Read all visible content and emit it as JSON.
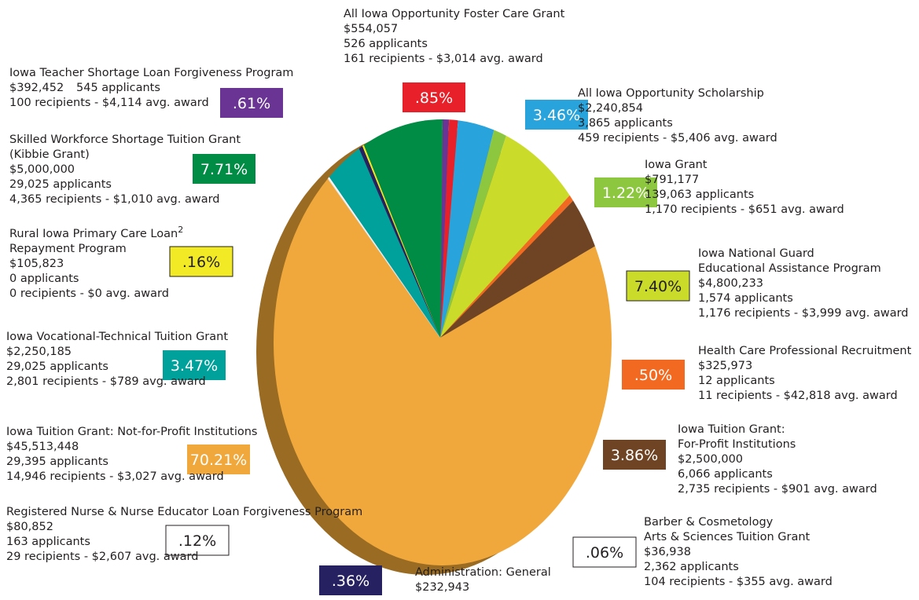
{
  "chart_data": {
    "type": "pie",
    "categories": [
      [
        "Iowa Teacher Shortage Loan Forgiveness Program"
      ],
      [
        "All Iowa Opportunity Foster Care Grant"
      ],
      [
        "All Iowa Opportunity Scholarship"
      ],
      [
        "Iowa Grant"
      ],
      [
        "Iowa National Guard",
        "Educational Assistance Program"
      ],
      [
        "Health Care Professional Recruitment"
      ],
      [
        "Iowa Tuition Grant:",
        "For-Profit Institutions"
      ],
      [
        "Iowa Tuition Grant: Not-for-Profit Institutions"
      ],
      [
        "Barber & Cosmetology",
        "Arts & Sciences Tuition Grant"
      ],
      [
        "Registered Nurse & Nurse Educator Loan Forgiveness Program"
      ],
      [
        "Iowa Vocational-Technical Tuition Grant"
      ],
      [
        "Administration: General"
      ],
      [
        "Rural Iowa Primary Care Loan",
        "Repayment Program"
      ],
      [
        "Skilled Workforce Shortage Tuition Grant",
        "(Kibbie Grant)"
      ]
    ],
    "superscripts": [
      null,
      null,
      null,
      null,
      null,
      null,
      null,
      null,
      null,
      null,
      null,
      null,
      "2",
      null
    ],
    "details": [
      [
        "$392,452",
        "545 applicants",
        "100 recipients - $4,114 avg. award"
      ],
      [
        "$554,057",
        "526 applicants",
        "161 recipients - $3,014 avg. award"
      ],
      [
        "$2,240,854",
        "3,865 applicants",
        "459 recipients - $5,406 avg. award"
      ],
      [
        "$791,177",
        "139,063 applicants",
        "1,170 recipients - $651 avg. award"
      ],
      [
        "$4,800,233",
        "1,574 applicants",
        "1,176 recipients - $3,999 avg. award"
      ],
      [
        "$325,973",
        "12 applicants",
        "11 recipients - $42,818 avg. award"
      ],
      [
        "$2,500,000",
        "6,066 applicants",
        "2,735 recipients - $901 avg. award"
      ],
      [
        "$45,513,448",
        "29,395 applicants",
        "14,946 recipients - $3,027 avg. award"
      ],
      [
        "$36,938",
        "2,362 applicants",
        "104 recipients - $355 avg. award"
      ],
      [
        "$80,852",
        "163 applicants",
        "29 recipients - $2,607 avg. award"
      ],
      [
        "$2,250,185",
        "29,025 applicants",
        "2,801 recipients - $789 avg. award"
      ],
      [
        "$232,943"
      ],
      [
        "$105,823",
        "0 applicants",
        "0 recipients - $0 avg. award"
      ],
      [
        "$5,000,000",
        "29,025 applicants",
        "4,365 recipients - $1,010 avg. award"
      ]
    ],
    "values": [
      0.61,
      0.85,
      3.46,
      1.22,
      7.4,
      0.5,
      3.86,
      70.21,
      0.06,
      0.12,
      3.47,
      0.36,
      0.16,
      7.71
    ],
    "value_labels": [
      ".61%",
      ".85%",
      "3.46%",
      "1.22%",
      "7.40%",
      ".50%",
      "3.86%",
      "70.21%",
      ".06%",
      ".12%",
      "3.47%",
      ".36%",
      ".16%",
      "7.71%"
    ],
    "colors": [
      "#6a3494",
      "#e8202a",
      "#29a3dc",
      "#8dc63f",
      "#cbdb2a",
      "#f26a22",
      "#6e4424",
      "#f0a83c",
      "#ffffff",
      "#ffffff",
      "#00a19a",
      "#262262",
      "#f2ea25",
      "#008c44"
    ]
  }
}
